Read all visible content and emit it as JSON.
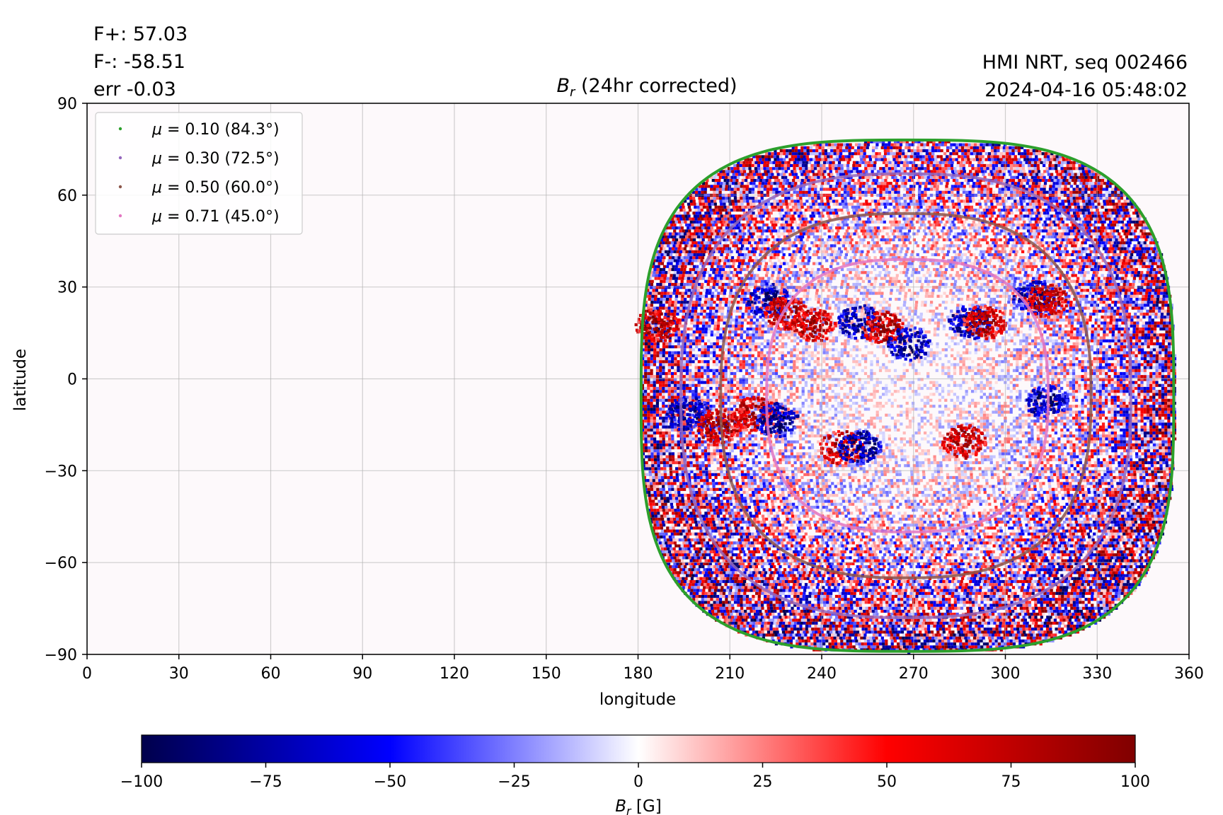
{
  "header": {
    "stats": [
      "F+: 57.03",
      "F-: -58.51",
      "err -0.03"
    ],
    "source_line1": "HMI NRT, seq 002466",
    "source_line2": "2024-04-16 05:48:02"
  },
  "chart_data": {
    "type": "heatmap",
    "title_symbol": "B",
    "title_subscript": "r",
    "title_rest": " (24hr corrected)",
    "xlabel": "longitude",
    "ylabel": "latitude",
    "xlim": [
      0,
      360
    ],
    "ylim": [
      -90,
      90
    ],
    "xticks": [
      0,
      30,
      60,
      90,
      120,
      150,
      180,
      210,
      240,
      270,
      300,
      330,
      360
    ],
    "yticks": [
      -90,
      -60,
      -30,
      0,
      30,
      60,
      90
    ],
    "grid": true,
    "legend_placement": "top-left",
    "disk_extent": {
      "lon_min": 181,
      "lon_max": 355,
      "lat_min": -89,
      "lat_max": 78,
      "center_lon": 268
    },
    "series": [
      {
        "name": "μ = 0.10 (84.3°)",
        "color": "#2ca02c",
        "lon_range": [
          181,
          355
        ],
        "lat_range": [
          -89,
          78
        ]
      },
      {
        "name": "μ = 0.30 (72.5°)",
        "color": "#9467bd",
        "lon_range": [
          194,
          341
        ],
        "lat_range": [
          -78,
          67
        ]
      },
      {
        "name": "μ = 0.50 (60.0°)",
        "color": "#8c564b",
        "lon_range": [
          207,
          328
        ],
        "lat_range": [
          -65,
          54
        ]
      },
      {
        "name": "μ = 0.71 (45.0°)",
        "color": "#e377c2",
        "lon_range": [
          222,
          314
        ],
        "lat_range": [
          -50,
          39
        ]
      }
    ],
    "legend_items": [
      {
        "prefix": "μ = ",
        "text": "0.10 (84.3°)",
        "color": "#2ca02c"
      },
      {
        "prefix": "μ = ",
        "text": "0.30 (72.5°)",
        "color": "#9467bd"
      },
      {
        "prefix": "μ = ",
        "text": "0.50 (60.0°)",
        "color": "#8c564b"
      },
      {
        "prefix": "μ = ",
        "text": "0.71 (45.0°)",
        "color": "#e377c2"
      }
    ],
    "active_regions": [
      {
        "lon": 222,
        "lat": 26,
        "polarity": "negative"
      },
      {
        "lon": 228,
        "lat": 22,
        "polarity": "positive"
      },
      {
        "lon": 237,
        "lat": 18,
        "polarity": "positive"
      },
      {
        "lon": 252,
        "lat": 19,
        "polarity": "negative"
      },
      {
        "lon": 260,
        "lat": 17,
        "polarity": "positive"
      },
      {
        "lon": 268,
        "lat": 12,
        "polarity": "negative"
      },
      {
        "lon": 288,
        "lat": 19,
        "polarity": "negative"
      },
      {
        "lon": 293,
        "lat": 19,
        "polarity": "positive"
      },
      {
        "lon": 309,
        "lat": 27,
        "polarity": "negative"
      },
      {
        "lon": 313,
        "lat": 26,
        "polarity": "positive"
      },
      {
        "lon": 196,
        "lat": -11,
        "polarity": "negative"
      },
      {
        "lon": 206,
        "lat": -15,
        "polarity": "positive"
      },
      {
        "lon": 218,
        "lat": -11,
        "polarity": "positive"
      },
      {
        "lon": 225,
        "lat": -13,
        "polarity": "negative"
      },
      {
        "lon": 246,
        "lat": -22,
        "polarity": "positive"
      },
      {
        "lon": 252,
        "lat": -22,
        "polarity": "negative"
      },
      {
        "lon": 286,
        "lat": -20,
        "polarity": "positive"
      },
      {
        "lon": 313,
        "lat": -7,
        "polarity": "negative"
      },
      {
        "lon": 186,
        "lat": 18,
        "polarity": "positive"
      }
    ],
    "colorbar": {
      "min": -100,
      "max": 100,
      "ticks": [
        -100,
        -75,
        -50,
        -25,
        0,
        25,
        50,
        75,
        100
      ],
      "tick_labels": [
        "−100",
        "−75",
        "−50",
        "−25",
        "0",
        "25",
        "50",
        "75",
        "100"
      ],
      "label_symbol": "B",
      "label_subscript": "r",
      "label_unit": " [G]",
      "colormap": "seismic",
      "colors": [
        "#00004c",
        "#0000ff",
        "#ffffff",
        "#ff0000",
        "#800000"
      ]
    }
  }
}
